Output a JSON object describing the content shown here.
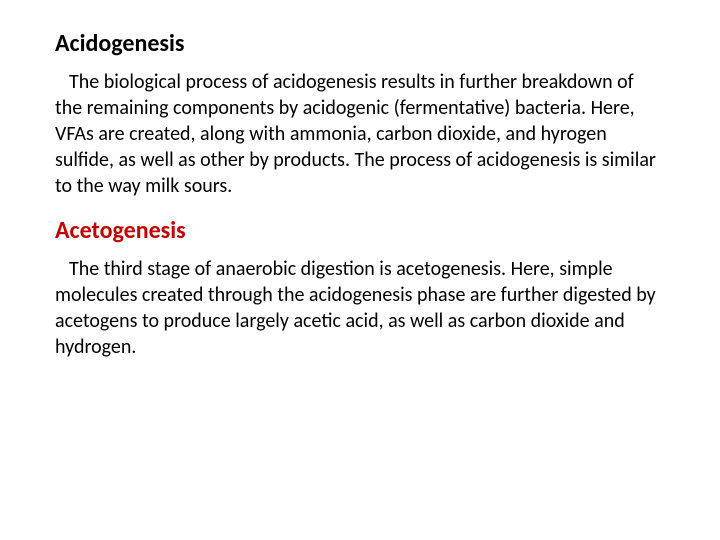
{
  "sections": [
    {
      "heading": "Acidogenesis",
      "heading_color": "#000000",
      "heading_fontsize": 24,
      "body": "The biological process of acidogenesis results in further breakdown of the remaining components by acidogenic (fermentative) bacteria. Here, VFAs are created, along with ammonia, carbon dioxide, and hyrogen sulfide, as well as other by products. The process of acidogenesis is similar to the way milk sours.",
      "body_color": "#000000",
      "body_fontsize": 20
    },
    {
      "heading": "Acetogenesis",
      "heading_color": "#c00000",
      "heading_fontsize": 24,
      "body": "The third stage of anaerobic digestion is acetogenesis. Here, simple molecules created through the acidogenesis phase are further digested by acetogens to produce largely acetic acid, as well as carbon dioxide and hydrogen.",
      "body_color": "#000000",
      "body_fontsize": 20
    }
  ],
  "background_color": "#ffffff"
}
